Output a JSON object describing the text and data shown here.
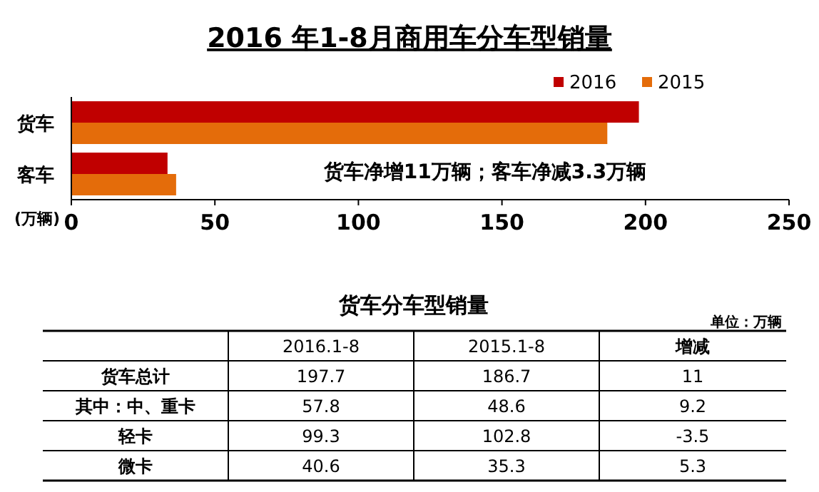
{
  "chart_data": [
    {
      "type": "bar",
      "orientation": "horizontal",
      "title": "2016 年1-8月商用车分车型销量",
      "xlabel": "(万辆)",
      "categories": [
        "货车",
        "客车"
      ],
      "series": [
        {
          "name": "2016",
          "color": "#c00000",
          "values": [
            197.7,
            33.5
          ]
        },
        {
          "name": "2015",
          "color": "#e46c0a",
          "values": [
            186.7,
            36.5
          ]
        }
      ],
      "xlim": [
        0,
        250
      ],
      "xticks": [
        0,
        50,
        100,
        150,
        200,
        250
      ],
      "legend": "top right",
      "grid": false,
      "annotations": [
        "货车净增11万辆；客车净减3.3万辆"
      ]
    },
    {
      "type": "heatmap",
      "title": "货车分车型销量",
      "categories": [
        "2016.1-8",
        "2015.1-8",
        "增减"
      ],
      "y_categories": [
        "货车总计",
        "其中：中、重卡",
        "轻卡",
        "微卡"
      ],
      "cells": [
        [
          197.7,
          186.7,
          11
        ],
        [
          57.8,
          48.6,
          9.2
        ],
        [
          99.3,
          102.8,
          -3.5
        ],
        [
          40.6,
          35.3,
          5.3
        ]
      ],
      "data_labels": true,
      "annotations": [
        "单位：万辆"
      ]
    }
  ]
}
